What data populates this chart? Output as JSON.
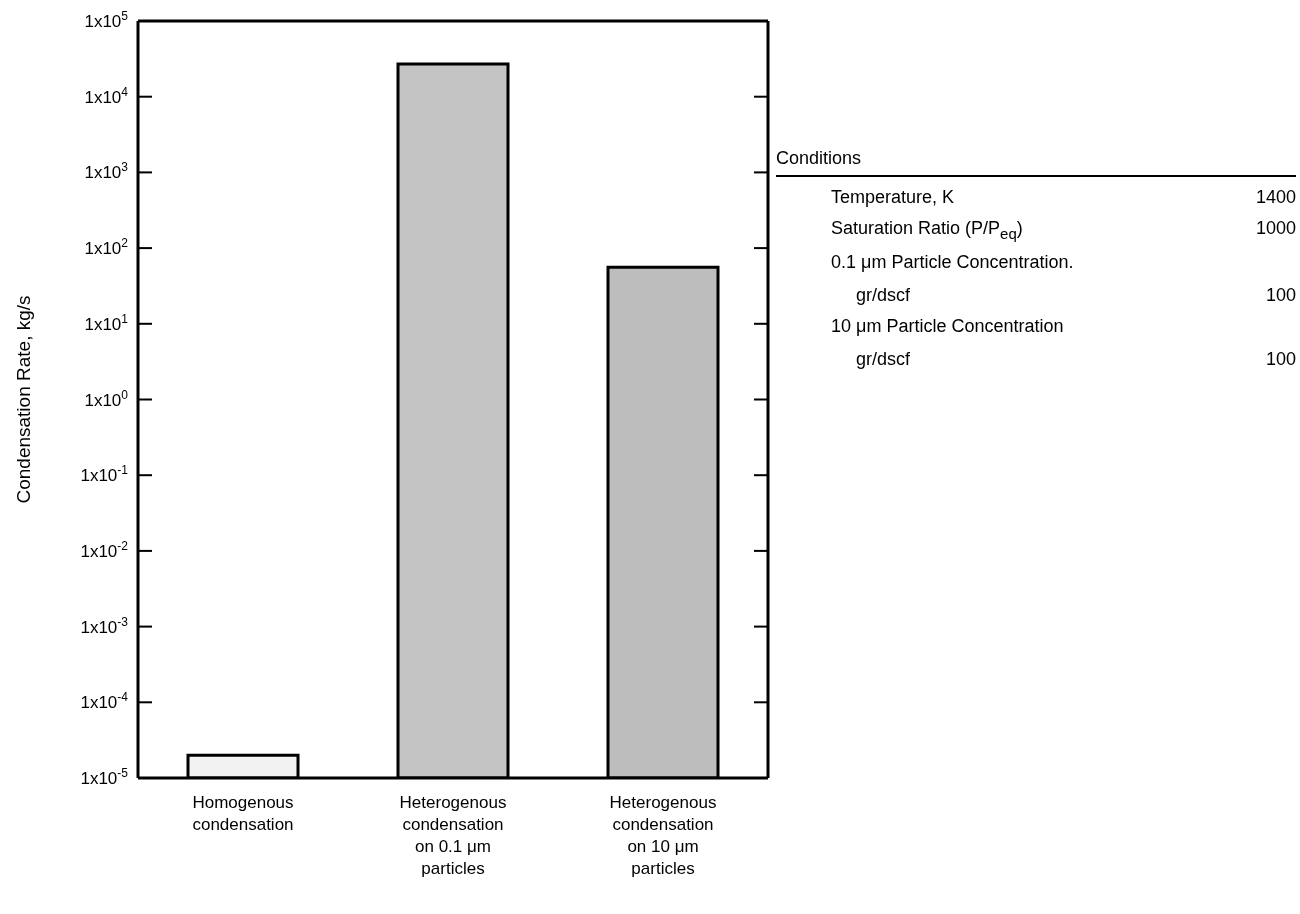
{
  "chart_data": [
    {
      "type": "bar",
      "ylabel": "Condensation Rate, kg/s",
      "categories": [
        "Homogenous\ncondensation",
        "Heterogenous\ncondensation\non 0.1 μm\nparticles",
        "Heterogenous\ncondensation\non 10 μm\nparticles"
      ],
      "values": [
        2e-05,
        27000,
        56
      ],
      "colors": [
        "#f2f2f2",
        "#c4c4c4",
        "#bdbdbd"
      ],
      "log": true,
      "ylim": [
        1e-05,
        100000
      ],
      "yticks": [
        {
          "value": 1e-05,
          "label": "1x10$^{-5}$"
        },
        {
          "value": 0.0001,
          "label": "1x10$^{-4}$"
        },
        {
          "value": 0.001,
          "label": "1x10$^{-3}$"
        },
        {
          "value": 0.01,
          "label": "1x10$^{-2}$"
        },
        {
          "value": 0.1,
          "label": "1x10$^{-1}$"
        },
        {
          "value": 1,
          "label": "1x10$^{0}$"
        },
        {
          "value": 10,
          "label": "1x10$^{1}$"
        },
        {
          "value": 100,
          "label": "1x10$^{2}$"
        },
        {
          "value": 1000,
          "label": "1x10$^{3}$"
        },
        {
          "value": 10000,
          "label": "1x10$^{4}$"
        },
        {
          "value": 100000,
          "label": "1x10$^{5}$"
        }
      ]
    },
    {
      "type": "other",
      "title": "Conditions",
      "categories": [
        "Temperature, K",
        "Saturation Ratio (P/P$_{eq}$)",
        "0.1 μm Particle Concentration.\ngr/dscf",
        "10 μm Particle Concentration\ngr/dscf"
      ],
      "values": [
        1400,
        1000,
        100,
        100
      ],
      "data_labels": true
    }
  ]
}
